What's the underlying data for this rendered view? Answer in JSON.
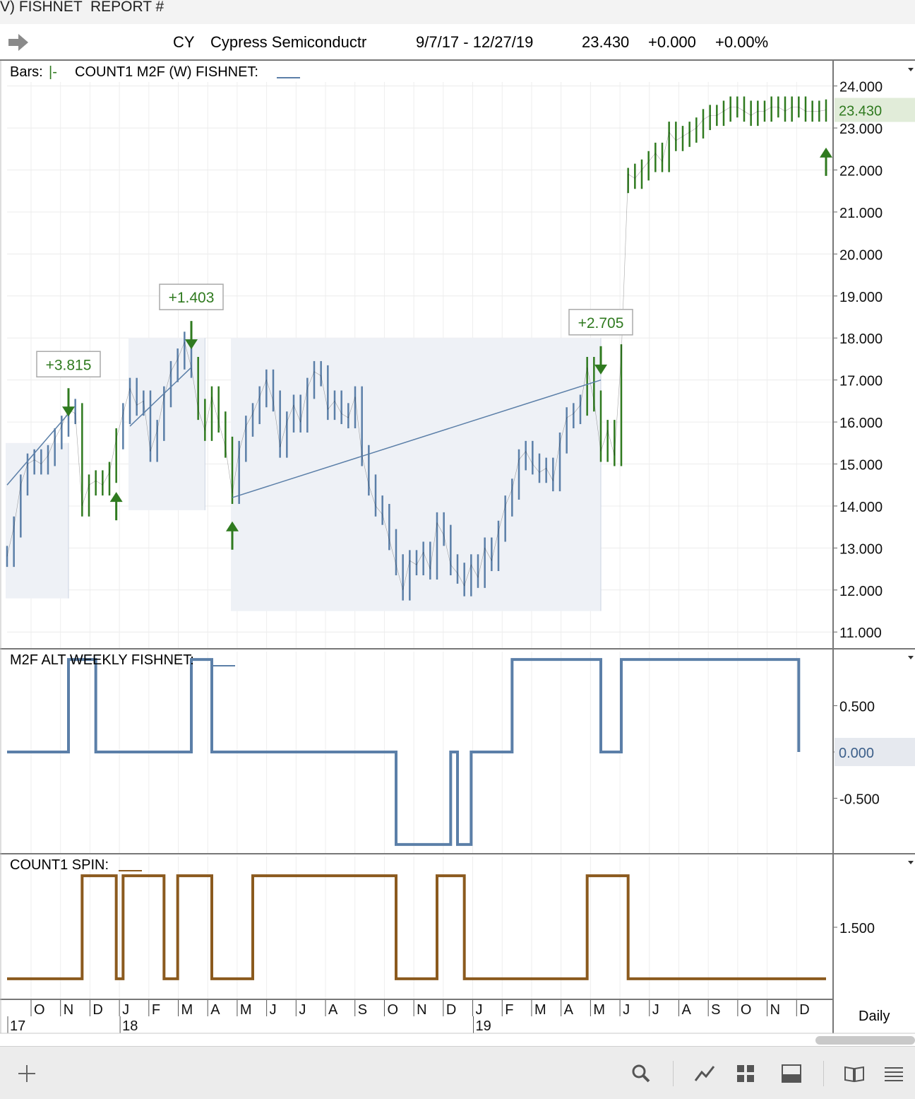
{
  "window": {
    "title": "V) FISHNET  REPORT #"
  },
  "header": {
    "symbol": "CY",
    "company": "Cypress Semiconductr",
    "date_range": "9/7/17 - 12/27/19",
    "last": "23.430",
    "change": "+0.000",
    "change_pct": "+0.00%"
  },
  "panels": {
    "price": {
      "label": "COUNT1 M2F (W) FISHNET:",
      "bars_label": "Bars:",
      "bars_value": "|-"
    },
    "osc1": {
      "label": "M2F ALT WEEKLY FISHNET:"
    },
    "osc2": {
      "label": "COUNT1 SPIN:"
    }
  },
  "timeframe": "Daily",
  "colors": {
    "blue": "#5b7fa8",
    "green": "#2f7a1f",
    "orange": "#8b5a1e",
    "shade": "#eef1f6",
    "price_tag": "#e1ecd9",
    "zero_tag": "#e6e9ef"
  },
  "chart_data": [
    {
      "type": "line",
      "name": "price",
      "ylim": [
        10.6,
        24.6
      ],
      "yticks": [
        "24.000",
        "23.000",
        "22.000",
        "21.000",
        "20.000",
        "19.000",
        "18.000",
        "17.000",
        "16.000",
        "15.000",
        "14.000",
        "13.000",
        "12.000",
        "11.000"
      ],
      "last_value": "23.430",
      "x_dates": [
        "2017-09-07",
        "2017-09-14",
        "2017-09-21",
        "2017-09-28",
        "2017-10-05",
        "2017-10-12",
        "2017-10-19",
        "2017-10-26",
        "2017-11-02",
        "2017-11-09",
        "2017-11-16",
        "2017-11-23",
        "2017-11-30",
        "2017-12-07",
        "2017-12-14",
        "2017-12-21",
        "2017-12-28",
        "2018-01-04",
        "2018-01-11",
        "2018-01-18",
        "2018-01-25",
        "2018-02-01",
        "2018-02-08",
        "2018-02-15",
        "2018-02-22",
        "2018-03-01",
        "2018-03-08",
        "2018-03-15",
        "2018-03-22",
        "2018-03-29",
        "2018-04-05",
        "2018-04-12",
        "2018-04-19",
        "2018-04-26",
        "2018-05-03",
        "2018-05-10",
        "2018-05-17",
        "2018-05-24",
        "2018-05-31",
        "2018-06-07",
        "2018-06-14",
        "2018-06-21",
        "2018-06-28",
        "2018-07-05",
        "2018-07-12",
        "2018-07-19",
        "2018-07-26",
        "2018-08-02",
        "2018-08-09",
        "2018-08-16",
        "2018-08-23",
        "2018-08-30",
        "2018-09-06",
        "2018-09-13",
        "2018-09-20",
        "2018-09-27",
        "2018-10-04",
        "2018-10-11",
        "2018-10-18",
        "2018-10-25",
        "2018-11-01",
        "2018-11-08",
        "2018-11-15",
        "2018-11-22",
        "2018-11-29",
        "2018-12-06",
        "2018-12-13",
        "2018-12-20",
        "2018-12-27",
        "2019-01-03",
        "2019-01-10",
        "2019-01-17",
        "2019-01-24",
        "2019-01-31",
        "2019-02-07",
        "2019-02-14",
        "2019-02-21",
        "2019-02-28",
        "2019-03-07",
        "2019-03-14",
        "2019-03-21",
        "2019-03-28",
        "2019-04-04",
        "2019-04-11",
        "2019-04-18",
        "2019-04-25",
        "2019-05-02",
        "2019-05-09",
        "2019-05-16",
        "2019-05-23",
        "2019-05-30",
        "2019-06-06",
        "2019-06-13",
        "2019-06-20",
        "2019-06-27",
        "2019-07-04",
        "2019-07-11",
        "2019-07-18",
        "2019-07-25",
        "2019-08-01",
        "2019-08-08",
        "2019-08-15",
        "2019-08-22",
        "2019-08-29",
        "2019-09-05",
        "2019-09-12",
        "2019-09-19",
        "2019-09-26",
        "2019-10-03",
        "2019-10-10",
        "2019-10-17",
        "2019-10-24",
        "2019-10-31",
        "2019-11-07",
        "2019-11-14",
        "2019-11-21",
        "2019-11-28",
        "2019-12-05",
        "2019-12-12",
        "2019-12-19",
        "2019-12-27"
      ],
      "values": [
        12.8,
        13.5,
        14.5,
        15.0,
        15.1,
        15.0,
        15.2,
        15.6,
        15.9,
        16.3,
        16.2,
        14.0,
        14.5,
        14.6,
        14.5,
        14.8,
        15.6,
        16.2,
        16.8,
        16.4,
        16.5,
        15.3,
        15.8,
        16.6,
        17.2,
        17.5,
        17.9,
        17.3,
        16.3,
        15.8,
        16.6,
        16.0,
        15.4,
        14.3,
        15.3,
        15.9,
        16.2,
        16.6,
        17.0,
        16.5,
        15.4,
        16.0,
        16.4,
        16.0,
        16.8,
        17.2,
        17.1,
        16.3,
        16.5,
        16.2,
        16.1,
        16.6,
        15.2,
        14.5,
        14.0,
        13.8,
        13.2,
        12.6,
        12.0,
        12.7,
        12.6,
        12.9,
        12.5,
        13.6,
        13.3,
        12.6,
        12.4,
        12.1,
        12.6,
        12.3,
        13.0,
        12.7,
        13.4,
        14.0,
        14.4,
        15.1,
        15.3,
        15.0,
        14.8,
        14.9,
        14.6,
        15.5,
        16.1,
        16.2,
        16.4,
        17.3,
        16.5,
        15.3,
        15.8,
        15.2,
        17.6,
        21.9,
        21.8,
        22.0,
        22.2,
        22.4,
        22.2,
        22.9,
        22.7,
        22.8,
        22.9,
        23.0,
        23.2,
        23.3,
        23.3,
        23.4,
        23.5,
        23.5,
        23.4,
        23.3,
        23.4,
        23.4,
        23.5,
        23.5,
        23.4,
        23.5,
        23.5,
        23.4,
        23.4,
        23.4,
        23.43
      ],
      "signals": [
        {
          "date": "2017-11-09",
          "label": "+3.815",
          "dir": "down",
          "value": 16.3
        },
        {
          "date": "2018-03-15",
          "label": "+1.403",
          "dir": "down",
          "value": 17.9
        },
        {
          "date": "2019-05-09",
          "label": "+2.705",
          "dir": "down",
          "value": 17.3
        },
        {
          "date": "2017-12-28",
          "dir": "up",
          "value": 14.4
        },
        {
          "date": "2018-04-26",
          "dir": "up",
          "value": 13.7
        },
        {
          "date": "2019-12-27",
          "dir": "up",
          "value": 22.6
        }
      ]
    },
    {
      "type": "line",
      "name": "M2F ALT WEEKLY FISHNET",
      "yticks": [
        "0.500",
        "0.000",
        "-0.500"
      ],
      "ylim": [
        -1.1,
        1.1
      ],
      "last_value": "0.000",
      "values": [
        0,
        0,
        0,
        0,
        0,
        0,
        0,
        0,
        0,
        1,
        1,
        1,
        1,
        0,
        0,
        0,
        0,
        0,
        0,
        0,
        0,
        0,
        0,
        0,
        0,
        0,
        0,
        1,
        1,
        1,
        0,
        0,
        0,
        0,
        0,
        0,
        0,
        0,
        0,
        0,
        0,
        0,
        0,
        0,
        0,
        0,
        0,
        0,
        0,
        0,
        0,
        0,
        0,
        0,
        0,
        0,
        0,
        -1,
        -1,
        -1,
        -1,
        -1,
        -1,
        -1,
        -1,
        0,
        -1,
        -1,
        0,
        0,
        0,
        0,
        0,
        0,
        1,
        1,
        1,
        1,
        1,
        1,
        1,
        1,
        1,
        1,
        1,
        1,
        1,
        0,
        0,
        0,
        1,
        1,
        1,
        1,
        1,
        1,
        1,
        1,
        1,
        1,
        1,
        1,
        1,
        1,
        1,
        1,
        1,
        1,
        1,
        1,
        1,
        1,
        1,
        1,
        1,
        1,
        0
      ]
    },
    {
      "type": "line",
      "name": "COUNT1 SPIN",
      "yticks": [
        "1.500"
      ],
      "ylim": [
        0.8,
        2.2
      ],
      "values": [
        1,
        1,
        1,
        1,
        1,
        1,
        1,
        1,
        1,
        1,
        1,
        2,
        2,
        2,
        2,
        2,
        1,
        2,
        2,
        2,
        2,
        2,
        2,
        1,
        1,
        2,
        2,
        2,
        2,
        2,
        1,
        1,
        1,
        1,
        1,
        1,
        2,
        2,
        2,
        2,
        2,
        2,
        2,
        2,
        2,
        2,
        2,
        2,
        2,
        2,
        2,
        2,
        2,
        2,
        2,
        2,
        2,
        1,
        1,
        1,
        1,
        1,
        1,
        2,
        2,
        2,
        2,
        1,
        1,
        1,
        1,
        1,
        1,
        1,
        1,
        1,
        1,
        1,
        1,
        1,
        1,
        1,
        1,
        1,
        1,
        2,
        2,
        2,
        2,
        2,
        2,
        1,
        1,
        1,
        1,
        1,
        1,
        1,
        1,
        1,
        1,
        1,
        1,
        1,
        1,
        1,
        1,
        1,
        1,
        1,
        1,
        1,
        1,
        1,
        1,
        1,
        1,
        1,
        1,
        1,
        1
      ]
    }
  ],
  "x_axis": {
    "months": [
      "O",
      "N",
      "D",
      "J",
      "F",
      "M",
      "A",
      "M",
      "J",
      "J",
      "A",
      "S",
      "O",
      "N",
      "D",
      "J",
      "F",
      "M",
      "A",
      "M",
      "J",
      "J",
      "A",
      "S",
      "O",
      "N",
      "D"
    ],
    "years": [
      "17",
      "18",
      "19"
    ]
  }
}
